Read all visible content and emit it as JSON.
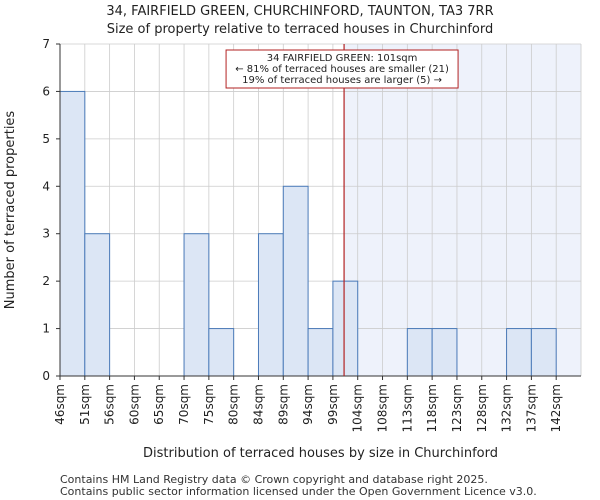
{
  "title_line1": "34, FAIRFIELD GREEN, CHURCHINFORD, TAUNTON, TA3 7RR",
  "title_line2": "Size of property relative to terraced houses in Churchinford",
  "footer_line1": "Contains HM Land Registry data © Crown copyright and database right 2025.",
  "footer_line2": "Contains public sector information licensed under the Open Government Licence v3.0.",
  "chart_data": {
    "type": "bar",
    "xlabel": "Distribution of terraced houses by size in Churchinford",
    "ylabel": "Number of terraced properties",
    "categories": [
      "46sqm",
      "51sqm",
      "56sqm",
      "60sqm",
      "65sqm",
      "70sqm",
      "75sqm",
      "80sqm",
      "84sqm",
      "89sqm",
      "94sqm",
      "99sqm",
      "104sqm",
      "108sqm",
      "113sqm",
      "118sqm",
      "123sqm",
      "128sqm",
      "132sqm",
      "137sqm",
      "142sqm"
    ],
    "values": [
      6,
      3,
      0,
      0,
      0,
      3,
      1,
      0,
      3,
      4,
      1,
      2,
      0,
      0,
      1,
      1,
      0,
      0,
      1,
      1,
      0
    ],
    "ylim": [
      0,
      7
    ],
    "yticks": [
      0,
      1,
      2,
      3,
      4,
      5,
      6,
      7
    ],
    "marker_value": 101,
    "marker_bin_index": 11,
    "marker_bin_fraction": 0.45,
    "annotation": {
      "line1": "34 FAIRFIELD GREEN: 101sqm",
      "line2": "← 81% of terraced houses are smaller (21)",
      "line3": "19% of terraced houses are larger (5) →"
    },
    "colors": {
      "bar_fill": "#dce6f5",
      "bar_stroke": "#4a7ab8",
      "highlight_region": "#eef2fb",
      "marker": "#b22222",
      "grid": "#cccccc"
    }
  }
}
